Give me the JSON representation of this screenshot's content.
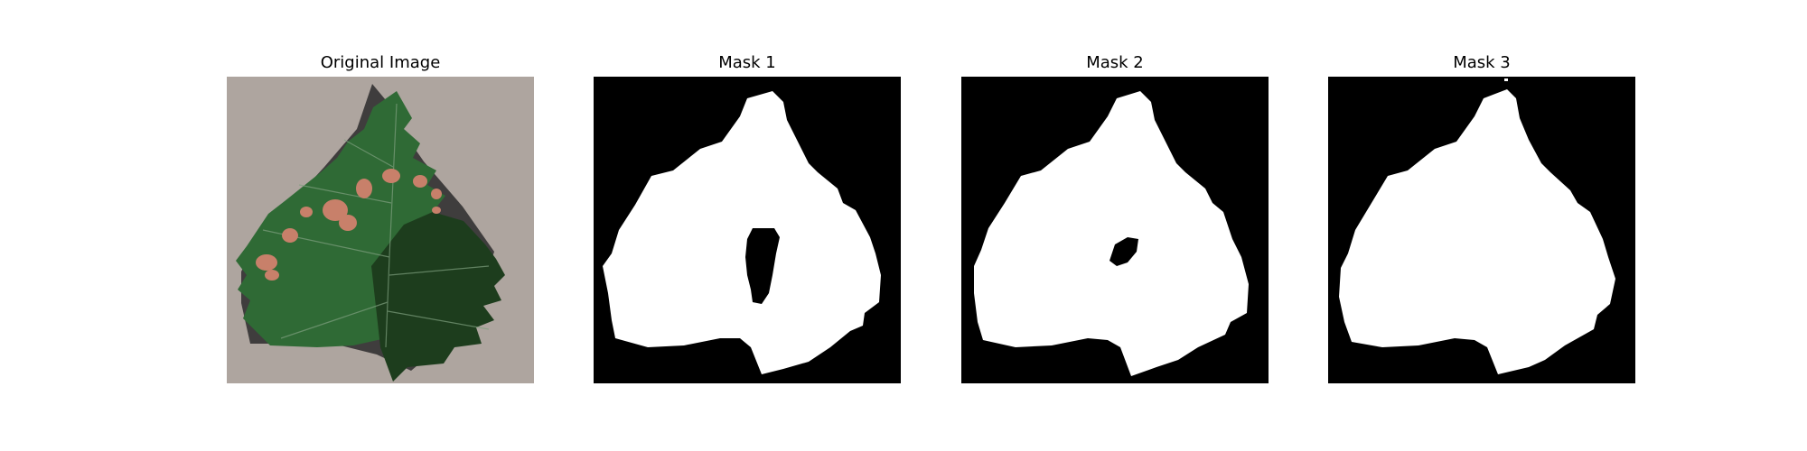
{
  "figure": {
    "panels": [
      {
        "title": "Original Image",
        "kind": "leaf-photo"
      },
      {
        "title": "Mask 1",
        "kind": "mask",
        "hole": "large"
      },
      {
        "title": "Mask 2",
        "kind": "mask",
        "hole": "small"
      },
      {
        "title": "Mask 3",
        "kind": "mask",
        "hole": "none"
      }
    ]
  },
  "colors": {
    "mask_background": "#000000",
    "mask_foreground": "#ffffff",
    "photo_background": "#aea59f",
    "leaf_light": "#2f6a35",
    "leaf_dark": "#1d3d1d",
    "lesion": "#c8806a"
  }
}
